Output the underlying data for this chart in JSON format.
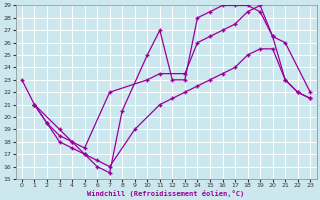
{
  "xlabel": "Windchill (Refroidissement éolien,°C)",
  "bg_color": "#cce8ee",
  "grid_color": "#ffffff",
  "line_color": "#990099",
  "xlim": [
    -0.5,
    23.5
  ],
  "ylim": [
    15,
    29
  ],
  "xticks": [
    0,
    1,
    2,
    3,
    4,
    5,
    6,
    7,
    8,
    9,
    10,
    11,
    12,
    13,
    14,
    15,
    16,
    17,
    18,
    19,
    20,
    21,
    22,
    23
  ],
  "yticks": [
    15,
    16,
    17,
    18,
    19,
    20,
    21,
    22,
    23,
    24,
    25,
    26,
    27,
    28,
    29
  ],
  "line1_x": [
    0,
    1,
    3,
    4,
    5,
    6,
    7,
    8,
    10,
    11,
    12,
    13,
    14,
    15,
    16,
    17,
    18,
    19,
    20,
    21,
    22,
    23
  ],
  "line1_y": [
    23,
    21,
    19,
    18,
    17,
    16,
    15.5,
    20.5,
    25,
    27,
    23,
    23,
    28,
    28.5,
    29,
    29,
    29,
    28.5,
    26.5,
    23,
    22,
    21.5
  ],
  "line2_x": [
    1,
    2,
    3,
    4,
    5,
    7,
    10,
    11,
    13,
    14,
    15,
    16,
    17,
    18,
    19,
    20,
    21,
    23
  ],
  "line2_y": [
    21,
    19.5,
    18.5,
    18,
    17.5,
    22,
    23,
    23.5,
    23.5,
    26,
    26.5,
    27,
    27.5,
    28.5,
    29,
    26.5,
    26,
    22
  ],
  "line3_x": [
    1,
    2,
    3,
    4,
    5,
    6,
    7,
    9,
    11,
    12,
    13,
    14,
    15,
    16,
    17,
    18,
    19,
    20,
    21,
    22,
    23
  ],
  "line3_y": [
    21,
    19.5,
    18,
    17.5,
    17,
    16.5,
    16,
    19,
    21,
    21.5,
    22,
    22.5,
    23,
    23.5,
    24,
    25,
    25.5,
    25.5,
    23,
    22,
    21.5
  ]
}
